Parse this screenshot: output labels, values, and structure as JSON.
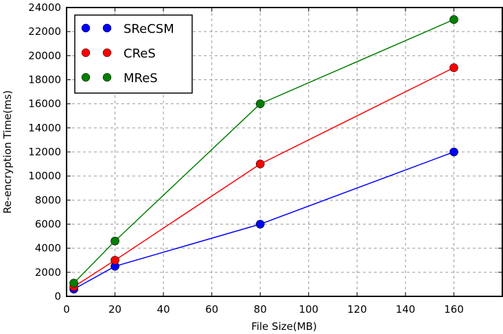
{
  "chart_data": {
    "type": "line",
    "title": "",
    "xlabel": "File Size(MB)",
    "ylabel": "Re-encryption Time(ms)",
    "xlim": [
      0,
      180
    ],
    "ylim": [
      0,
      24000
    ],
    "xticks": [
      0,
      20,
      40,
      60,
      80,
      100,
      120,
      140,
      160
    ],
    "yticks": [
      0,
      2000,
      4000,
      6000,
      8000,
      10000,
      12000,
      14000,
      16000,
      18000,
      20000,
      22000,
      24000
    ],
    "grid": true,
    "legend_position": "upper left",
    "x": [
      3,
      20,
      80,
      160
    ],
    "series": [
      {
        "name": "SReCSM",
        "color": "#0000ff",
        "values": [
          600,
          2500,
          6000,
          12000
        ]
      },
      {
        "name": "CReS",
        "color": "#ff0000",
        "values": [
          800,
          3000,
          11000,
          19000
        ]
      },
      {
        "name": "MReS",
        "color": "#007f00",
        "values": [
          1100,
          4600,
          16000,
          23000
        ]
      }
    ]
  }
}
